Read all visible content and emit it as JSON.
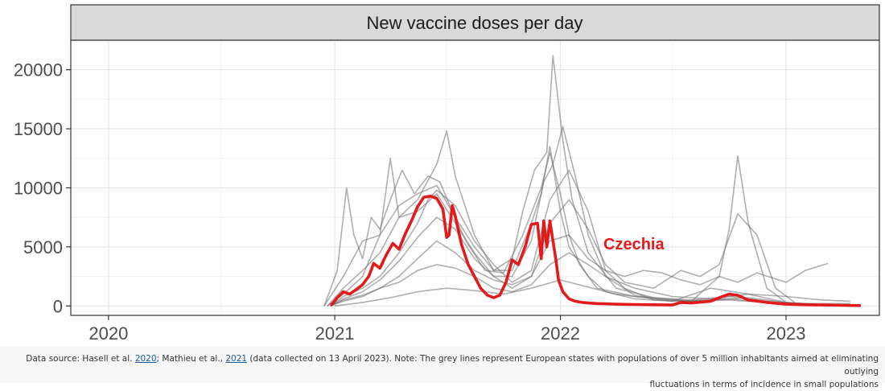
{
  "chart_data": {
    "type": "line",
    "title": "New vaccine doses per day",
    "xlabel": "",
    "ylabel": "",
    "x_ticks": [
      "2020",
      "2021",
      "2022",
      "2023"
    ],
    "y_ticks": [
      "0",
      "5000",
      "10000",
      "15000",
      "20000"
    ],
    "xlim": [
      "2019-11-01",
      "2023-06-01"
    ],
    "ylim": [
      -800,
      22500
    ],
    "grid": true,
    "series": [
      {
        "name": "Czechia",
        "highlight": true,
        "color": "#e31a1c",
        "annotation": "Czechia",
        "x": [
          "2020-12-27",
          "2021-01-05",
          "2021-01-15",
          "2021-01-25",
          "2021-02-05",
          "2021-02-15",
          "2021-02-25",
          "2021-03-05",
          "2021-03-15",
          "2021-03-25",
          "2021-04-05",
          "2021-04-15",
          "2021-04-25",
          "2021-05-05",
          "2021-05-15",
          "2021-05-25",
          "2021-06-05",
          "2021-06-15",
          "2021-06-25",
          "2021-07-01",
          "2021-07-05",
          "2021-07-10",
          "2021-07-15",
          "2021-07-25",
          "2021-08-05",
          "2021-08-15",
          "2021-08-25",
          "2021-09-05",
          "2021-09-15",
          "2021-09-25",
          "2021-10-05",
          "2021-10-15",
          "2021-10-25",
          "2021-11-05",
          "2021-11-15",
          "2021-11-25",
          "2021-12-01",
          "2021-12-05",
          "2021-12-10",
          "2021-12-15",
          "2021-12-20",
          "2021-12-25",
          "2021-12-29",
          "2022-01-05",
          "2022-01-15",
          "2022-01-25",
          "2022-02-05",
          "2022-02-15",
          "2022-03-01",
          "2022-03-15",
          "2022-04-01",
          "2022-05-01",
          "2022-06-01",
          "2022-07-01",
          "2022-07-15",
          "2022-08-01",
          "2022-09-01",
          "2022-09-15",
          "2022-10-01",
          "2022-10-15",
          "2022-11-01",
          "2022-12-01",
          "2023-01-01",
          "2023-02-01",
          "2023-03-01",
          "2023-04-01",
          "2023-04-30"
        ],
        "values": [
          100,
          700,
          1200,
          1000,
          1400,
          1800,
          2500,
          3600,
          3200,
          4300,
          5300,
          4800,
          6100,
          7200,
          8400,
          9200,
          9300,
          9100,
          8200,
          5800,
          6000,
          8500,
          7600,
          5200,
          3500,
          2500,
          1500,
          900,
          700,
          900,
          2000,
          3900,
          3500,
          5000,
          6900,
          7000,
          4000,
          7200,
          5000,
          7200,
          5500,
          3800,
          2200,
          1200,
          600,
          400,
          300,
          250,
          200,
          180,
          150,
          120,
          100,
          80,
          300,
          250,
          400,
          700,
          1000,
          900,
          500,
          300,
          150,
          100,
          80,
          50,
          30
        ]
      },
      {
        "name": "",
        "highlight": false,
        "x": [
          "2020-12-15",
          "2021-01-15",
          "2021-02-15",
          "2021-03-15",
          "2021-04-15",
          "2021-05-15",
          "2021-06-15",
          "2021-07-15",
          "2021-08-15",
          "2021-09-15",
          "2021-10-15",
          "2021-11-15",
          "2021-12-01",
          "2021-12-15",
          "2022-01-01",
          "2022-01-15",
          "2022-02-15",
          "2022-03-15",
          "2022-05-01",
          "2022-07-01",
          "2022-09-01",
          "2022-11-01",
          "2023-01-01",
          "2023-03-01"
        ],
        "values": [
          0,
          2500,
          5500,
          6000,
          8500,
          9500,
          10200,
          7500,
          5000,
          3000,
          3000,
          7000,
          9500,
          13500,
          8000,
          5000,
          2500,
          1200,
          600,
          400,
          500,
          700,
          300,
          100
        ]
      },
      {
        "name": "",
        "highlight": false,
        "x": [
          "2020-12-15",
          "2021-01-05",
          "2021-01-20",
          "2021-02-01",
          "2021-02-15",
          "2021-03-01",
          "2021-03-15",
          "2021-04-01",
          "2021-04-20",
          "2021-05-10",
          "2021-06-01",
          "2021-06-20",
          "2021-07-10",
          "2021-08-01",
          "2021-09-01",
          "2021-10-01",
          "2021-11-01",
          "2021-12-01",
          "2021-12-15",
          "2022-01-01",
          "2022-01-15",
          "2022-02-01",
          "2022-03-01",
          "2022-05-01",
          "2022-08-01",
          "2022-10-01",
          "2022-12-01",
          "2023-02-01"
        ],
        "values": [
          0,
          3000,
          10000,
          6000,
          4000,
          7500,
          6500,
          9000,
          11500,
          9500,
          11000,
          10500,
          8000,
          5500,
          3000,
          2800,
          6000,
          10000,
          13000,
          9500,
          6000,
          3500,
          1500,
          800,
          500,
          800,
          400,
          100
        ]
      },
      {
        "name": "",
        "highlight": false,
        "x": [
          "2020-12-20",
          "2021-01-15",
          "2021-02-15",
          "2021-03-15",
          "2021-04-15",
          "2021-05-15",
          "2021-06-15",
          "2021-07-01",
          "2021-07-15",
          "2021-08-15",
          "2021-09-15",
          "2021-10-15",
          "2021-11-01",
          "2021-11-20",
          "2021-12-10",
          "2021-12-20",
          "2022-01-05",
          "2022-01-20",
          "2022-02-15",
          "2022-04-01",
          "2022-06-01",
          "2022-08-01",
          "2022-10-01",
          "2022-12-01",
          "2023-02-01"
        ],
        "values": [
          0,
          1500,
          3000,
          4500,
          7500,
          9000,
          12000,
          14800,
          11000,
          6000,
          3000,
          4000,
          8000,
          11500,
          13000,
          21200,
          14000,
          9000,
          4500,
          1500,
          700,
          400,
          600,
          300,
          100
        ]
      },
      {
        "name": "",
        "highlight": false,
        "x": [
          "2020-12-20",
          "2021-01-15",
          "2021-02-15",
          "2021-03-15",
          "2021-04-01",
          "2021-04-15",
          "2021-05-15",
          "2021-06-15",
          "2021-07-15",
          "2021-08-15",
          "2021-09-15",
          "2021-10-15",
          "2021-11-15",
          "2021-12-05",
          "2021-12-20",
          "2022-01-05",
          "2022-01-25",
          "2022-02-15",
          "2022-03-15",
          "2022-05-01",
          "2022-07-01",
          "2022-09-01",
          "2022-11-01",
          "2023-01-01",
          "2023-03-01"
        ],
        "values": [
          0,
          1000,
          2500,
          6000,
          12500,
          7500,
          8000,
          9500,
          7000,
          4500,
          2500,
          2500,
          5500,
          10500,
          12000,
          15200,
          11000,
          6000,
          2500,
          900,
          400,
          1500,
          1000,
          300,
          100
        ]
      },
      {
        "name": "",
        "highlight": false,
        "x": [
          "2020-12-25",
          "2021-01-15",
          "2021-02-15",
          "2021-03-15",
          "2021-04-15",
          "2021-05-15",
          "2021-06-01",
          "2021-06-15",
          "2021-07-15",
          "2021-08-15",
          "2021-09-15",
          "2021-10-15",
          "2021-11-15",
          "2021-12-15",
          "2022-01-15",
          "2022-02-15",
          "2022-03-15",
          "2022-04-15",
          "2022-06-01",
          "2022-08-01",
          "2022-09-15",
          "2022-10-01",
          "2022-10-15",
          "2022-11-01",
          "2022-12-01",
          "2023-01-01"
        ],
        "values": [
          0,
          800,
          1500,
          2500,
          4500,
          7000,
          9000,
          9800,
          8500,
          5500,
          3500,
          2000,
          3000,
          9000,
          11500,
          8000,
          3000,
          1500,
          500,
          400,
          2500,
          6500,
          12700,
          7000,
          1500,
          300
        ]
      },
      {
        "name": "",
        "highlight": false,
        "x": [
          "2020-12-25",
          "2021-01-15",
          "2021-02-15",
          "2021-03-15",
          "2021-04-15",
          "2021-05-15",
          "2021-06-15",
          "2021-07-15",
          "2021-08-15",
          "2021-09-15",
          "2021-10-15",
          "2021-11-15",
          "2021-12-15",
          "2022-01-15",
          "2022-02-15",
          "2022-03-15",
          "2022-04-15",
          "2022-06-01",
          "2022-07-15",
          "2022-08-15",
          "2022-09-15",
          "2022-10-15",
          "2022-11-15",
          "2022-12-15",
          "2023-01-15"
        ],
        "values": [
          0,
          600,
          1200,
          2200,
          3800,
          5800,
          7500,
          6500,
          4000,
          2500,
          1500,
          2500,
          7000,
          9000,
          6500,
          3500,
          2000,
          1500,
          3000,
          2500,
          3500,
          7800,
          6000,
          1500,
          300
        ]
      },
      {
        "name": "",
        "highlight": false,
        "x": [
          "2020-12-25",
          "2021-01-15",
          "2021-02-15",
          "2021-03-15",
          "2021-04-15",
          "2021-05-15",
          "2021-06-15",
          "2021-07-15",
          "2021-08-15",
          "2021-09-15",
          "2021-10-15",
          "2021-11-15",
          "2021-12-15",
          "2022-01-15",
          "2022-02-15",
          "2022-03-15",
          "2022-05-01",
          "2022-07-01",
          "2022-09-01",
          "2022-11-01",
          "2023-01-01",
          "2023-03-01",
          "2023-04-15"
        ],
        "values": [
          0,
          500,
          900,
          1500,
          2000,
          3000,
          3500,
          3200,
          2500,
          1500,
          1200,
          1800,
          3500,
          4500,
          3500,
          2500,
          1500,
          800,
          600,
          1000,
          800,
          500,
          400
        ]
      },
      {
        "name": "",
        "highlight": false,
        "x": [
          "2020-12-25",
          "2021-01-15",
          "2021-02-15",
          "2021-03-15",
          "2021-04-15",
          "2021-05-15",
          "2021-06-15",
          "2021-07-15",
          "2021-08-15",
          "2021-09-15",
          "2021-10-15",
          "2021-11-15",
          "2021-12-15",
          "2022-01-15",
          "2022-02-15",
          "2022-03-15",
          "2022-04-15",
          "2022-05-15",
          "2022-06-15",
          "2022-07-15",
          "2022-08-15",
          "2022-09-15",
          "2022-10-15",
          "2022-11-15",
          "2023-01-01",
          "2023-02-01",
          "2023-03-10"
        ],
        "values": [
          0,
          400,
          800,
          1500,
          2500,
          4000,
          5500,
          4500,
          3000,
          2200,
          1800,
          2500,
          5500,
          6000,
          4000,
          3000,
          2500,
          3000,
          2800,
          2200,
          1800,
          2500,
          2000,
          2800,
          2000,
          3000,
          3600
        ]
      },
      {
        "name": "",
        "highlight": false,
        "x": [
          "2021-01-01",
          "2021-02-15",
          "2021-04-01",
          "2021-05-15",
          "2021-07-01",
          "2021-08-15",
          "2021-10-01",
          "2021-11-15",
          "2022-01-01",
          "2022-02-15",
          "2022-04-01",
          "2022-06-01",
          "2022-08-01",
          "2022-10-01",
          "2022-12-01",
          "2023-02-01",
          "2023-04-15"
        ],
        "values": [
          0,
          300,
          700,
          1200,
          1500,
          1300,
          1000,
          1500,
          2200,
          1600,
          1000,
          600,
          400,
          500,
          300,
          200,
          200
        ]
      }
    ]
  },
  "caption": {
    "line1_pre": "Data source: Hasell et al. ",
    "link1": "2020",
    "line1_mid": "; Mathieu et al., ",
    "link2": "2021",
    "line1_post": " (data collected on 13 April 2023). Note: The grey lines represent European states with populations of over 5 million inhabitants aimed at eliminating outlying",
    "line2": "fluctuations in terms of incidence in small populations"
  }
}
